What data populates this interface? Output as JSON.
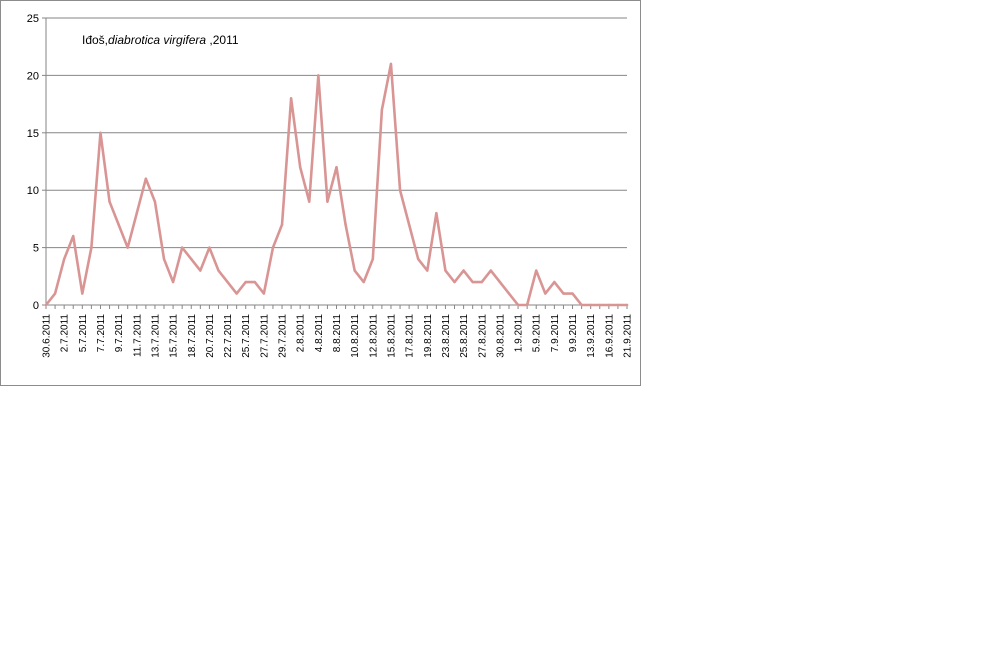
{
  "chart_data": {
    "type": "line",
    "title": {
      "place": "Iđoš,",
      "species": "diabrotica virgifera",
      "year": " ,2011"
    },
    "xlabel": "",
    "ylabel": "",
    "ylim": [
      0,
      25
    ],
    "yticks": [
      0,
      5,
      10,
      15,
      20,
      25
    ],
    "grid": true,
    "legend": "none",
    "series_color": "#d99594",
    "categories": [
      "30.6.2011",
      "",
      "2.7.2011",
      "",
      "5.7.2011",
      "",
      "7.7.2011",
      "",
      "9.7.2011",
      "",
      "11.7.2011",
      "",
      "13.7.2011",
      "",
      "15.7.2011",
      "",
      "18.7.2011",
      "",
      "20.7.2011",
      "",
      "22.7.2011",
      "",
      "25.7.2011",
      "",
      "27.7.2011",
      "",
      "29.7.2011",
      "",
      "2.8.2011",
      "",
      "4.8.2011",
      "",
      "8.8.2011",
      "",
      "10.8.2011",
      "",
      "12.8.2011",
      "",
      "15.8.2011",
      "",
      "17.8.2011",
      "",
      "19.8.2011",
      "",
      "23.8.2011",
      "",
      "25.8.2011",
      "",
      "27.8.2011",
      "",
      "30.8.2011",
      "",
      "1.9.2011",
      "",
      "5.9.2011",
      "",
      "7.9.2011",
      "",
      "9.9.2011",
      "",
      "13.9.2011",
      "",
      "16.9.2011",
      "",
      "21.9.2011"
    ],
    "values": [
      0,
      1,
      4,
      6,
      1,
      5,
      15,
      9,
      7,
      5,
      8,
      11,
      9,
      4,
      2,
      5,
      4,
      3,
      5,
      3,
      2,
      1,
      2,
      2,
      1,
      5,
      7,
      18,
      12,
      9,
      20,
      9,
      12,
      7,
      3,
      2,
      4,
      17,
      21,
      10,
      7,
      4,
      3,
      8,
      3,
      2,
      3,
      2,
      2,
      3,
      2,
      1,
      0,
      0,
      3,
      1,
      2,
      1,
      1,
      0,
      0,
      0,
      0,
      0,
      0
    ]
  }
}
